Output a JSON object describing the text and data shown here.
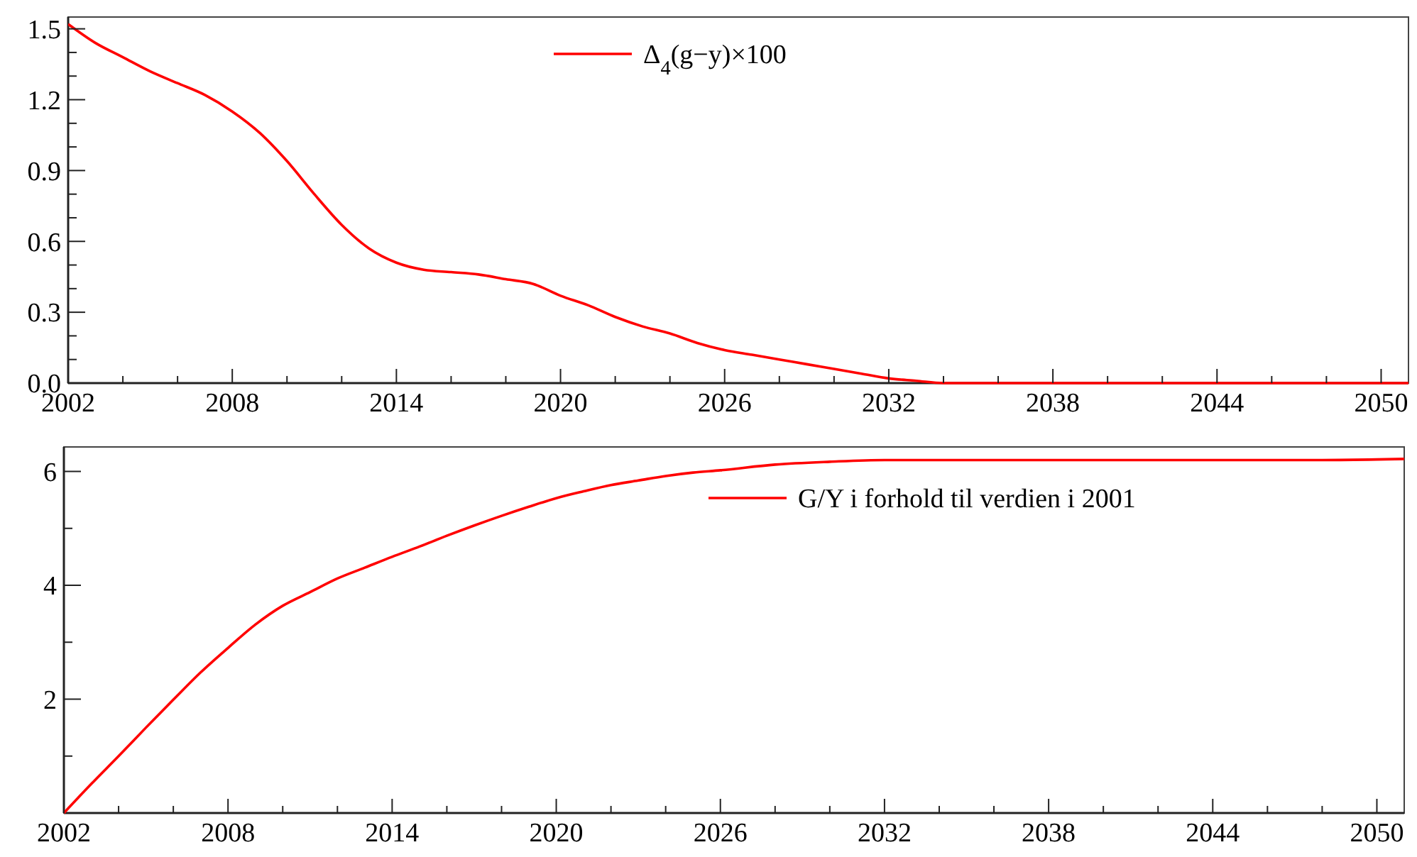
{
  "chart_data": [
    {
      "type": "line",
      "x": [
        2002,
        2003,
        2004,
        2005,
        2006,
        2007,
        2008,
        2009,
        2010,
        2011,
        2012,
        2013,
        2014,
        2015,
        2016,
        2017,
        2018,
        2019,
        2020,
        2021,
        2022,
        2023,
        2024,
        2025,
        2026,
        2027,
        2028,
        2029,
        2030,
        2031,
        2032,
        2033,
        2034,
        2035,
        2038,
        2042,
        2046,
        2050,
        2051
      ],
      "series": [
        {
          "name": "Δ$_{4}$(g−y)×100",
          "color": "#ff0000",
          "values": [
            1.52,
            1.44,
            1.38,
            1.32,
            1.27,
            1.22,
            1.15,
            1.06,
            0.94,
            0.8,
            0.67,
            0.57,
            0.51,
            0.48,
            0.47,
            0.46,
            0.44,
            0.42,
            0.37,
            0.33,
            0.28,
            0.24,
            0.21,
            0.17,
            0.14,
            0.12,
            0.1,
            0.08,
            0.06,
            0.04,
            0.02,
            0.01,
            0,
            0,
            0,
            0,
            0,
            0,
            0
          ]
        }
      ],
      "xlim": [
        2002,
        2051
      ],
      "ylim": [
        0,
        1.55
      ],
      "xticks": [
        2002,
        {
          "value": 2004,
          "label": null
        },
        {
          "value": 2006,
          "label": null
        },
        2008,
        {
          "value": 2010,
          "label": null
        },
        {
          "value": 2012,
          "label": null
        },
        2014,
        {
          "value": 2016,
          "label": null
        },
        {
          "value": 2018,
          "label": null
        },
        2020,
        {
          "value": 2022,
          "label": null
        },
        {
          "value": 2024,
          "label": null
        },
        2026,
        {
          "value": 2028,
          "label": null
        },
        {
          "value": 2030,
          "label": null
        },
        2032,
        {
          "value": 2034,
          "label": null
        },
        {
          "value": 2036,
          "label": null
        },
        2038,
        {
          "value": 2040,
          "label": null
        },
        {
          "value": 2042,
          "label": null
        },
        2044,
        {
          "value": 2046,
          "label": null
        },
        {
          "value": 2048,
          "label": null
        },
        2050
      ],
      "yticks": [
        {
          "value": 0,
          "label": "0.0"
        },
        {
          "value": 0.1,
          "label": null
        },
        {
          "value": 0.2,
          "label": null
        },
        0.3,
        {
          "value": 0.4,
          "label": null
        },
        {
          "value": 0.5,
          "label": null
        },
        0.6,
        {
          "value": 0.7,
          "label": null
        },
        {
          "value": 0.8,
          "label": null
        },
        0.9,
        {
          "value": 1.0,
          "label": null
        },
        {
          "value": 1.1,
          "label": null
        },
        1.2,
        {
          "value": 1.3,
          "label": null
        },
        {
          "value": 1.4,
          "label": null
        },
        1.5
      ],
      "legend": "top",
      "grid": false
    },
    {
      "type": "line",
      "x": [
        2002,
        2003,
        2004,
        2005,
        2006,
        2007,
        2008,
        2009,
        2010,
        2011,
        2012,
        2013,
        2014,
        2015,
        2016,
        2017,
        2018,
        2019,
        2020,
        2021,
        2022,
        2023,
        2024,
        2025,
        2026,
        2028,
        2030,
        2032,
        2036,
        2040,
        2044,
        2048,
        2050,
        2051
      ],
      "series": [
        {
          "name": "G/Y i forhold til verdien i 2001",
          "color": "#ff0000",
          "values": [
            0,
            0.51,
            1.0,
            1.5,
            1.99,
            2.47,
            2.9,
            3.31,
            3.64,
            3.88,
            4.12,
            4.31,
            4.5,
            4.68,
            4.87,
            5.05,
            5.22,
            5.38,
            5.53,
            5.65,
            5.76,
            5.84,
            5.92,
            5.98,
            6.02,
            6.12,
            6.17,
            6.2,
            6.2,
            6.2,
            6.2,
            6.2,
            6.21,
            6.22
          ]
        }
      ],
      "xlim": [
        2002,
        2051
      ],
      "ylim": [
        0,
        6.43
      ],
      "xticks": [
        2002,
        {
          "value": 2004,
          "label": null
        },
        {
          "value": 2006,
          "label": null
        },
        2008,
        {
          "value": 2010,
          "label": null
        },
        {
          "value": 2012,
          "label": null
        },
        2014,
        {
          "value": 2016,
          "label": null
        },
        {
          "value": 2018,
          "label": null
        },
        2020,
        {
          "value": 2022,
          "label": null
        },
        {
          "value": 2024,
          "label": null
        },
        2026,
        {
          "value": 2028,
          "label": null
        },
        {
          "value": 2030,
          "label": null
        },
        2032,
        {
          "value": 2034,
          "label": null
        },
        {
          "value": 2036,
          "label": null
        },
        2038,
        {
          "value": 2040,
          "label": null
        },
        {
          "value": 2042,
          "label": null
        },
        2044,
        {
          "value": 2046,
          "label": null
        },
        {
          "value": 2048,
          "label": null
        },
        2050
      ],
      "yticks": [
        {
          "value": 1,
          "label": null
        },
        2,
        {
          "value": 3,
          "label": null
        },
        4,
        {
          "value": 5,
          "label": null
        },
        6
      ],
      "legend": "top right",
      "grid": false
    }
  ]
}
